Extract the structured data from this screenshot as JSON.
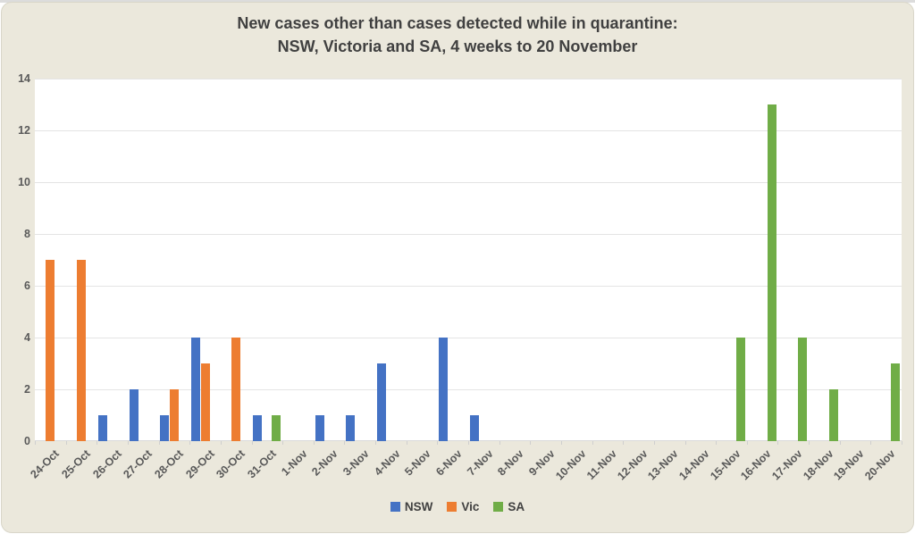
{
  "chart": {
    "title_line1": "New cases other than cases detected while in quarantine:",
    "title_line2": "NSW, Victoria and SA, 4 weeks to 20 November"
  },
  "chart_data": {
    "type": "bar",
    "title": "New cases other than cases detected while in quarantine: NSW, Victoria and SA, 4 weeks to 20 November",
    "categories": [
      "24-Oct",
      "25-Oct",
      "26-Oct",
      "27-Oct",
      "28-Oct",
      "29-Oct",
      "30-Oct",
      "31-Oct",
      "1-Nov",
      "2-Nov",
      "3-Nov",
      "4-Nov",
      "5-Nov",
      "6-Nov",
      "7-Nov",
      "8-Nov",
      "9-Nov",
      "10-Nov",
      "11-Nov",
      "12-Nov",
      "13-Nov",
      "14-Nov",
      "15-Nov",
      "16-Nov",
      "17-Nov",
      "18-Nov",
      "19-Nov",
      "20-Nov"
    ],
    "series": [
      {
        "name": "NSW",
        "color": "#4472C4",
        "values": [
          0,
          0,
          1,
          2,
          1,
          4,
          0,
          1,
          0,
          1,
          1,
          3,
          0,
          4,
          1,
          0,
          0,
          0,
          0,
          0,
          0,
          0,
          0,
          0,
          0,
          0,
          0,
          0
        ]
      },
      {
        "name": "Vic",
        "color": "#ED7D31",
        "values": [
          7,
          7,
          0,
          0,
          2,
          3,
          4,
          0,
          0,
          0,
          0,
          0,
          0,
          0,
          0,
          0,
          0,
          0,
          0,
          0,
          0,
          0,
          0,
          0,
          0,
          0,
          0,
          0
        ]
      },
      {
        "name": "SA",
        "color": "#70AD47",
        "values": [
          0,
          0,
          0,
          0,
          0,
          0,
          0,
          1,
          0,
          0,
          0,
          0,
          0,
          0,
          0,
          0,
          0,
          0,
          0,
          0,
          0,
          0,
          4,
          13,
          4,
          2,
          0,
          3
        ]
      }
    ],
    "xlabel": "",
    "ylabel": "",
    "ylim": [
      0,
      14
    ],
    "ytick_values": [
      0,
      2,
      4,
      6,
      8,
      10,
      12,
      14
    ],
    "ytick_labels": [
      "0",
      "2",
      "4",
      "6",
      "8",
      "10",
      "12",
      "14"
    ],
    "grid": true,
    "legend_position": "bottom",
    "plot_background": "#FFFFFF",
    "chart_background": "#EBE8DC"
  }
}
